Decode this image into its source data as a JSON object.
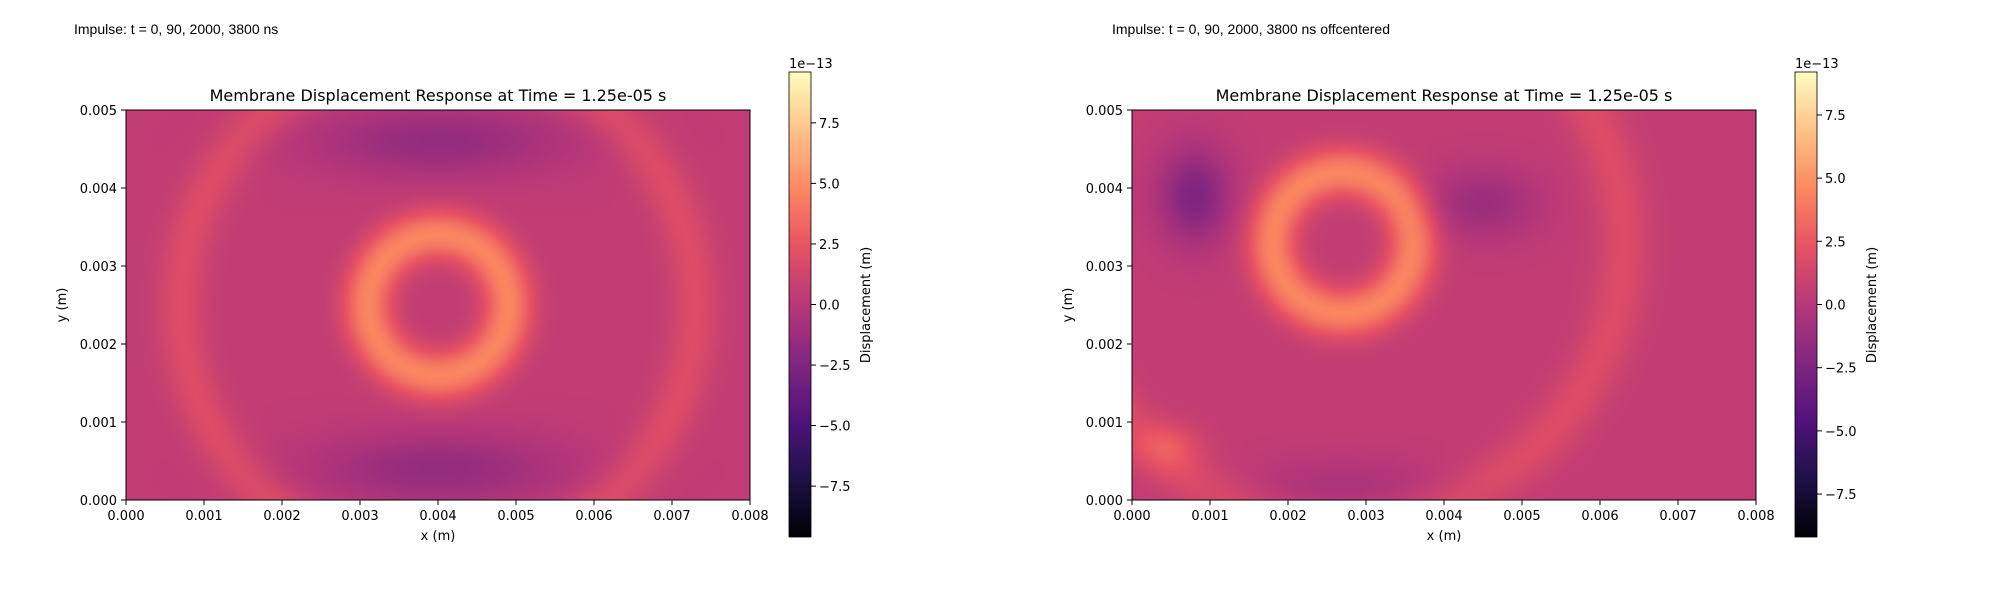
{
  "captions": [
    "Impulse: t = 0, 90, 2000, 3800 ns",
    "Impulse: t = 0, 90, 2000, 3800 ns offcentered"
  ],
  "colormap": "magma",
  "chart_data": [
    {
      "type": "heatmap",
      "title": "Membrane Displacement Response at Time = 1.25e-05 s",
      "xlabel": "x (m)",
      "ylabel": "y (m)",
      "xlim": [
        0.0,
        0.008
      ],
      "ylim": [
        0.0,
        0.005
      ],
      "x_ticks": [
        "0.000",
        "0.001",
        "0.002",
        "0.003",
        "0.004",
        "0.005",
        "0.006",
        "0.007",
        "0.008"
      ],
      "y_ticks": [
        "0.000",
        "0.001",
        "0.002",
        "0.003",
        "0.004",
        "0.005"
      ],
      "colorbar": {
        "label": "Displacement (m)",
        "scale_text": "1e−13",
        "range": [
          -9.6,
          9.6
        ],
        "ticks": [
          -7.5,
          -5.0,
          -2.5,
          0.0,
          2.5,
          5.0,
          7.5
        ],
        "tick_labels": [
          "−7.5",
          "−5.0",
          "−2.5",
          "0.0",
          "2.5",
          "5.0",
          "7.5"
        ]
      },
      "field": {
        "baseline": 0.5,
        "features": [
          {
            "kind": "ring",
            "cx": 0.004,
            "cy": 0.0025,
            "r": 0.0009,
            "width": 0.00032,
            "amp": 4.2
          },
          {
            "kind": "ring",
            "cx": 0.004,
            "cy": 0.0025,
            "r": 0.0033,
            "width": 0.00032,
            "amp": 1.4
          },
          {
            "kind": "blob",
            "cx": 0.004,
            "cy": 0.0046,
            "sx": 0.0016,
            "sy": 0.00045,
            "amp": -2.1
          },
          {
            "kind": "blob",
            "cx": 0.004,
            "cy": 0.0004,
            "sx": 0.0016,
            "sy": 0.00045,
            "amp": -2.1
          }
        ]
      }
    },
    {
      "type": "heatmap",
      "title": "Membrane Displacement Response at Time = 1.25e-05 s",
      "xlabel": "x (m)",
      "ylabel": "y (m)",
      "xlim": [
        0.0,
        0.008
      ],
      "ylim": [
        0.0,
        0.005
      ],
      "x_ticks": [
        "0.000",
        "0.001",
        "0.002",
        "0.003",
        "0.004",
        "0.005",
        "0.006",
        "0.007",
        "0.008"
      ],
      "y_ticks": [
        "0.000",
        "0.001",
        "0.002",
        "0.003",
        "0.004",
        "0.005"
      ],
      "colorbar": {
        "label": "Displacement (m)",
        "scale_text": "1e−13",
        "range": [
          -9.2,
          9.2
        ],
        "ticks": [
          -7.5,
          -5.0,
          -2.5,
          0.0,
          2.5,
          5.0,
          7.5
        ],
        "tick_labels": [
          "−7.5",
          "−5.0",
          "−2.5",
          "0.0",
          "2.5",
          "5.0",
          "7.5"
        ]
      },
      "field": {
        "baseline": 0.5,
        "features": [
          {
            "kind": "ring",
            "cx": 0.0027,
            "cy": 0.0033,
            "r": 0.0009,
            "width": 0.00032,
            "amp": 4.0
          },
          {
            "kind": "ring",
            "cx": 0.0027,
            "cy": 0.0033,
            "r": 0.0036,
            "width": 0.00035,
            "amp": 1.3
          },
          {
            "kind": "blob",
            "cx": 0.0008,
            "cy": 0.0039,
            "sx": 0.00045,
            "sy": 0.0006,
            "amp": -3.0
          },
          {
            "kind": "blob",
            "cx": 0.0045,
            "cy": 0.0038,
            "sx": 0.0007,
            "sy": 0.00045,
            "amp": -1.7
          },
          {
            "kind": "blob",
            "cx": 0.0027,
            "cy": 0.0001,
            "sx": 0.0014,
            "sy": 0.0004,
            "amp": -1.2
          },
          {
            "kind": "blob",
            "cx": 0.0005,
            "cy": 0.0007,
            "sx": 0.0004,
            "sy": 0.0003,
            "amp": 1.4
          }
        ]
      }
    }
  ]
}
